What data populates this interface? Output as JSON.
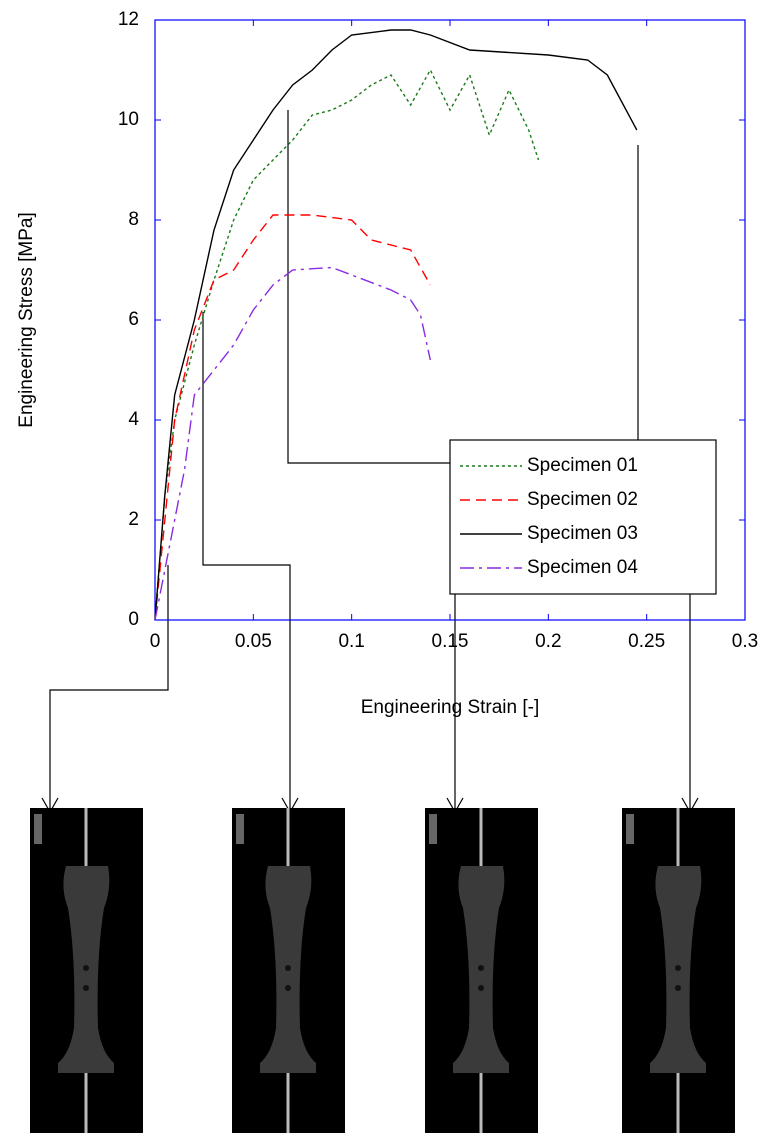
{
  "chart_data": {
    "type": "line",
    "x_label": "Engineering Strain [-]",
    "y_label": "Engineering Stress [MPa]",
    "xlim": [
      0,
      0.3
    ],
    "xticks": [
      0,
      0.05,
      0.1,
      0.15,
      0.2,
      0.25,
      0.3
    ],
    "ylim": [
      0,
      12
    ],
    "yticks": [
      0,
      2,
      4,
      6,
      8,
      10,
      12
    ],
    "axis_color": "#0000ff",
    "series": [
      {
        "name": "Specimen 01",
        "color": "#1a7a1a",
        "dash": "dotted",
        "x": [
          0,
          0.005,
          0.01,
          0.02,
          0.03,
          0.04,
          0.05,
          0.06,
          0.07,
          0.08,
          0.09,
          0.1,
          0.11,
          0.12,
          0.13,
          0.14,
          0.15,
          0.16,
          0.17,
          0.18,
          0.19,
          0.195
        ],
        "values": [
          0,
          2.5,
          4,
          5.5,
          6.8,
          8,
          8.8,
          9.2,
          9.6,
          10.1,
          10.2,
          10.4,
          10.7,
          10.9,
          10.3,
          11,
          10.2,
          10.9,
          9.7,
          10.6,
          9.8,
          9.2
        ]
      },
      {
        "name": "Specimen 02",
        "color": "#ff0000",
        "dash": "dashed",
        "x": [
          0,
          0.005,
          0.01,
          0.02,
          0.03,
          0.04,
          0.05,
          0.06,
          0.08,
          0.1,
          0.11,
          0.13,
          0.14
        ],
        "values": [
          0,
          2,
          4,
          5.8,
          6.8,
          7,
          7.6,
          8.1,
          8.1,
          8,
          7.6,
          7.4,
          6.7
        ]
      },
      {
        "name": "Specimen 03",
        "color": "#000000",
        "dash": "solid",
        "x": [
          0,
          0.005,
          0.01,
          0.02,
          0.03,
          0.04,
          0.05,
          0.06,
          0.07,
          0.08,
          0.09,
          0.1,
          0.12,
          0.13,
          0.14,
          0.16,
          0.2,
          0.22,
          0.23,
          0.245
        ],
        "values": [
          0,
          2.5,
          4.5,
          6,
          7.8,
          9,
          9.6,
          10.2,
          10.7,
          11,
          11.4,
          11.7,
          11.8,
          11.8,
          11.7,
          11.4,
          11.3,
          11.2,
          10.9,
          9.8
        ]
      },
      {
        "name": "Specimen 04",
        "color": "#8a2be2",
        "dash": "dashdot",
        "x": [
          0,
          0.005,
          0.015,
          0.02,
          0.03,
          0.04,
          0.05,
          0.06,
          0.07,
          0.09,
          0.1,
          0.12,
          0.13,
          0.135,
          0.14
        ],
        "values": [
          0,
          1,
          3,
          4.5,
          5,
          5.5,
          6.2,
          6.7,
          7,
          7.05,
          6.9,
          6.6,
          6.4,
          6.1,
          5.2
        ]
      }
    ]
  }
}
